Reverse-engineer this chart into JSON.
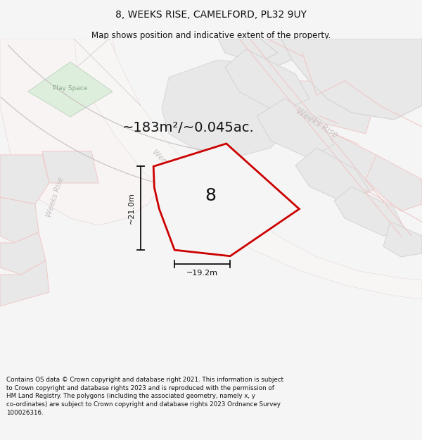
{
  "title": "8, WEEKS RISE, CAMELFORD, PL32 9UY",
  "subtitle": "Map shows position and indicative extent of the property.",
  "area_text": "~183m²/~0.045ac.",
  "dim_width": "~19.2m",
  "dim_height": "~21.0m",
  "plot_label": "8",
  "footer": "Contains OS data © Crown copyright and database right 2021. This information is subject to Crown copyright and database rights 2023 and is reproduced with the permission of HM Land Registry. The polygons (including the associated geometry, namely x, y co-ordinates) are subject to Crown copyright and database rights 2023 Ordnance Survey 100026316.",
  "bg_color": "#f5f5f5",
  "map_bg": "#ffffff",
  "boundary_color": "#cc0000",
  "dim_color": "#111111",
  "label_color": "#111111",
  "footer_color": "#111111",
  "title_color": "#111111",
  "parcel_fill": "#e8e8e8",
  "parcel_edge_pink": "#f0c8c8",
  "parcel_edge_gray": "#d0d0d0",
  "road_line_color": "#d8d0d0",
  "play_space_fill": "#ddeedd",
  "play_space_edge": "#c8d8c8",
  "road_label_color": "#c0b8b8",
  "weeks_rise_diag_color": "#c8c0c0"
}
